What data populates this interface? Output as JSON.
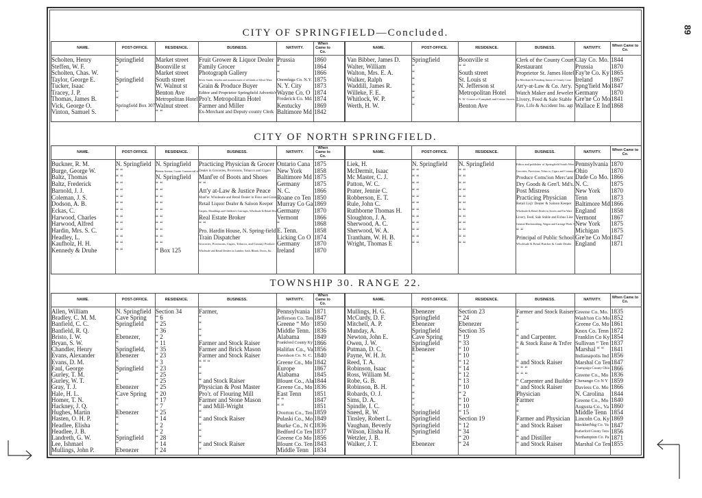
{
  "page_number": "89",
  "columns": [
    "NAME.",
    "POST-OFFICE.",
    "RESIDENCE.",
    "BUSINESS.",
    "NATIVITY.",
    "When Came to Co."
  ],
  "sections": [
    {
      "title": "CITY OF SPRINGFIELD—Concluded.",
      "left_rows": [
        [
          "Scholten, Henry",
          "Springfield",
          "Market street",
          "Fruit Grower & Liquor Dealer",
          "Prussia",
          "1860"
        ],
        [
          "Steffen, W. F.",
          "“",
          "Boonville st",
          "Family Grocer",
          "“",
          "1864"
        ],
        [
          "Scholten, Chas. W.",
          "“",
          "Market street",
          "Photograph Gallery",
          "“",
          "1866"
        ],
        [
          "Taylor, George E.",
          "Springfield",
          "South street",
          "Silver Smith, Jeweler and manufacturer of all kinds of Silver Ware",
          "Onondaga Co. N.Y.",
          "1875"
        ],
        [
          "Tucker, Isaac",
          "“",
          "W. Walnut st",
          "Grain & Produce Buyer",
          "N. Y. City",
          "1873"
        ],
        [
          "Tracey, J. P.",
          "“",
          "Benton Ave",
          "Editor and Proprietor Springfield Advertis'r",
          "Wayne Co. O",
          "1874"
        ],
        [
          "Thomas, James B.",
          "“",
          "Metropolitan Hotel",
          "Pro'r. Metropolitan Hotel",
          "Frederick Co. Md.",
          "1874"
        ],
        [
          "Vick, George O.",
          "Springfield Box 307",
          "Walnut street",
          "Farmer and Miller",
          "Kentucky",
          "1869"
        ],
        [
          "Vinton, Samuel S.",
          "“",
          "“ “",
          "Ex-Merchant and Deputy county Clerk",
          "Baltimore Md",
          "1842"
        ]
      ],
      "right_rows": [
        [
          "Van Bibber, James D.",
          "Springfield",
          "Boonville st",
          "Clerk of the County Court",
          "Clay Co. Mo.",
          "1844"
        ],
        [
          "Walter, William",
          "“",
          "“ “",
          "Restaurant",
          "Prussia",
          "1870"
        ],
        [
          "Walton, Mrs. E. A.",
          "“",
          "South street",
          "Proprietor St. James Hotel",
          "Fay'te Co. Ky",
          "1865"
        ],
        [
          "Walker, Ralph",
          "“",
          "St. Louis st",
          "Ex-Merchant & Presiding Justice of County Court",
          "Ireland",
          "1867"
        ],
        [
          "Waddill, James R.",
          "“",
          "N. Jefferson st",
          "Att'y-at-Law & Co. Att'y.",
          "Spng'field Mo",
          "1847"
        ],
        [
          "Willeke, F. E.",
          "“",
          "Metropolitan Hotel",
          "Watch Maker and Jeweler",
          "Germany",
          "1870"
        ],
        [
          "Whitlock, W. P.",
          "“",
          "N. W. Corner of Campbell and Centre Streets",
          "Livery, Feed & Sale Stable",
          "Gre'ne Co Mo",
          "1841"
        ],
        [
          "Werth, H. W.",
          "“",
          "Benton Ave",
          "Fire, Life & Accident Ins. agt",
          "Wallace E Ind",
          "1868"
        ]
      ]
    },
    {
      "title": "CITY OF NORTH SPRINGFIELD.",
      "left_rows": [
        [
          "Buckner, R. M.",
          "N. Springfield",
          "N. Springfield",
          "Practicing Physician & Grocer",
          "Ontario Cana",
          "1875"
        ],
        [
          "Burge, George W.",
          "“ “",
          "Benton Avenue, Corner Commercial street",
          "Dealer in Groceries, Provisions, Tobacco and Cigars",
          "New York",
          "1858"
        ],
        [
          "Baltz, Thomas",
          "“ “",
          "N. Springfield",
          "Manf'er of Boots and Shoes",
          "Baltimore Md",
          "1875"
        ],
        [
          "Baltz, Frederick",
          "“ “",
          "“ “",
          "“ “",
          "Germany",
          "1875"
        ],
        [
          "Barnold, J. J.",
          "“ “",
          "“ “",
          "Att'y at-Law & Justice Peace",
          "N. C.",
          "1866"
        ],
        [
          "Coleman, J. S.",
          "“ “",
          "“ “",
          "Manf'er. Wholesale and Retail Dealer in Flour and Grain",
          "Roane co Ten",
          "1850"
        ],
        [
          "Dodson, A. B.",
          "“ “",
          "“ “",
          "Retail Liquor Dealer & Saloon Keeper",
          "Murray Co Ga",
          "1869"
        ],
        [
          "Eckas, C.",
          "“ “",
          "“ “",
          "Carpets, Mouldings and Children's Carriages, Wholesale & Retail Dealer in Furniture",
          "Germany",
          "1870"
        ],
        [
          "Harwood, Charles",
          "“ “",
          "“ “",
          "Real Estate Broker",
          "Vermont",
          "1866"
        ],
        [
          "Harwood, Alfred",
          "“ “",
          "“ “",
          "“ “",
          "“",
          "1868"
        ],
        [
          "Hardin, Mrs. S. C.",
          "“ “",
          "“ “",
          "Pro. Hardin House, N. Spring-field",
          "E. Tenn.",
          "1858"
        ],
        [
          "Headley, L.",
          "“ “",
          "“ “",
          "Train Dispatcher",
          "Licking Co O",
          "1874"
        ],
        [
          "Kaufholz, H. H.",
          "“ “",
          "“ “",
          "Groceries, Provisions, Cigars, Tobacco, and Country Produce",
          "Germany",
          "1870"
        ],
        [
          "Kennedy & Druhe",
          "“ “",
          "“ Box 125",
          "Wholesale and Retail Dealers in Lumber, Sash, Blinds, Doors, &c.",
          "Ireland",
          "1870"
        ]
      ],
      "right_rows": [
        [
          "Liek, H.",
          "N. Springfield",
          "N. Springfield",
          "Editor and publisher of Springfield South West",
          "Pennsylvania",
          "1870"
        ],
        [
          "McDermit, Isaac",
          "“ “",
          "“ “",
          "Groceries, Provisions, Tobacco, Cigars and Country Produce",
          "Ohio",
          "1870"
        ],
        [
          "Mc Master, C. J.",
          "“ “",
          "“ “",
          "Produce Coms'ion Merc'ant",
          "Dade Co Mo.",
          "1866"
        ],
        [
          "Patton, W. C.",
          "“ “",
          "“ “",
          "Dry Goods & Gen'l. Md's.",
          "N. C.",
          "1875"
        ],
        [
          "Prater, Jennie C.",
          "“ “",
          "“ “",
          "Post Mistress",
          "New York",
          "1870"
        ],
        [
          "Robberson, E. T.",
          "“ “",
          "“ “",
          "Practicing Physician",
          "Tenn",
          "1873"
        ],
        [
          "Rule, John C.",
          "“ “",
          "“ “",
          "Retail Liq'r Dealer & Saloon Keeper",
          "Baltimore Md",
          "1866"
        ],
        [
          "Ruthborne Thomas H.",
          "“ “",
          "“ “",
          "Wholesale & Retail Dealer in Stoves and Tin Ware",
          "England",
          "1858"
        ],
        [
          "Sloughton, J. A.",
          "“ “",
          "“ “",
          "Livery, Feed, Sale Stable and Exbus Line",
          "Vermont",
          "1867"
        ],
        [
          "Sherwood, A. C.",
          "“ “",
          "“ “",
          "General Blacksmithing, Wagon and Carriage Work. Horse Shoeing a specialty.",
          "New York",
          "1875"
        ],
        [
          "Sherwood, W. A.",
          "“ “",
          "“ “",
          "“ “",
          "Michigan",
          "1875"
        ],
        [
          "Trantham, W. H. B.",
          "“ “",
          "“ “",
          "Principal of Public School",
          "Gre'ne Co Mo",
          "1847"
        ],
        [
          "Wright, Thomas E",
          "“ “",
          "“ “",
          "Wholesale & Retail Butcher & Cattle Dealer",
          "England",
          "1871"
        ]
      ]
    },
    {
      "title": "TOWNSHIP 30. RANGE 22.",
      "left_rows": [
        [
          "Allen, William",
          "N. Springfield",
          "Section 34",
          "Farmer,",
          "Pennsylvania",
          "1871"
        ],
        [
          "Bradley, C. M. M.",
          "Cave Spring",
          "“ 6",
          "“",
          "Jefferson Co. Ten",
          "1847"
        ],
        [
          "Banfield, C. C.",
          "Springfield",
          "“ 25",
          "“",
          "Greene “ Mo",
          "1850"
        ],
        [
          "Banfield, R. Q.",
          "“",
          "“ 36",
          "“",
          "Middle Tenn.",
          "1836"
        ],
        [
          "Bristo, I. W.",
          "Ebenezer,",
          "“ 2",
          "“",
          "Alabama",
          "1849"
        ],
        [
          "Bryan, S. W.",
          "“",
          "“ 11",
          "Farmer and Stock Raiser",
          "Frankford County Ky",
          "1866"
        ],
        [
          "Chandler, Henry",
          "Springfield,",
          "“ 35",
          "Farmer and Brick Mason",
          "Halifax Co., Va",
          "1856"
        ],
        [
          "Evans, Alexander",
          "Ebenezer",
          "“ 23",
          "Farmer and Stock Raiser",
          "Davidson Co. N. C.",
          "1840"
        ],
        [
          "Evans, D. M.",
          "“",
          "“ 3",
          "“ “ “",
          "Greene Co., Mo",
          "1842"
        ],
        [
          "Faul, George",
          "Springfield",
          "“ 23",
          "“",
          "Europe",
          "1867"
        ],
        [
          "Gurley, T. M.",
          "“",
          "“ 25",
          "“",
          "Alabama",
          "1845"
        ],
        [
          "Gurley, W. T.",
          "“",
          "“ 25",
          "“ and Stock Raiser",
          "Blount Co., Ala",
          "1844"
        ],
        [
          "Gray, T. J.",
          "Ebenezer",
          "“ 25",
          "Physician & Post Master",
          "Greene Co., Mo",
          "1836"
        ],
        [
          "Hale, H. L.",
          "Cave Spring",
          "“ 20",
          "Pro'r. of Flouring Mill",
          "East Tenn",
          "1851"
        ],
        [
          "Homer, T. N.",
          "“",
          "“ 17",
          "Farmer and Stone Mason",
          "“ “",
          "1847"
        ],
        [
          "Hackney, J. Q.",
          "“",
          "“ 7",
          "“ and Mill-Wright",
          "“ “",
          "1851"
        ],
        [
          "Hughes, Martin",
          "Ebenezer",
          "“ 25",
          "“",
          "Overton Co., Ten",
          "1859"
        ],
        [
          "Hasten, O. H. P.",
          "“",
          "“ 14",
          "“ and Stock Raiser",
          "Pulaski Co., Mo",
          "1849"
        ],
        [
          "Headlee, Elisha",
          "“",
          "“ 2",
          "“",
          "Burke Co., N C",
          "1836"
        ],
        [
          "Headlee, J. B.",
          "“",
          "“ 2",
          "“",
          "Bedford Co Ten",
          "1837"
        ],
        [
          "Landreth, G. W.",
          "Springfield",
          "“ 28",
          "“",
          "Greene Co Mo",
          "1856"
        ],
        [
          "Lee, Ishmael",
          "“",
          "“ 14",
          "“ and Stock Raiser",
          "Blount Co. Ten",
          "1843"
        ],
        [
          "Mullings, John P.",
          "Ebenezer",
          "“ 24",
          "“",
          "Middle Tenn",
          "1834"
        ]
      ],
      "right_rows": [
        [
          "Mullings, H. G.",
          "Ebenezer",
          "Section 23",
          "Farmer and Stock Raiser",
          "Greene Co. Mo.",
          "1835"
        ],
        [
          "McCurdy, D. F.",
          "Springfield",
          "“ 24",
          "“",
          "Wash'ton Co Mo",
          "1852"
        ],
        [
          "Mitchell, A. P.",
          "Ebenezer",
          "Ebenezer",
          "“",
          "Greene Co. Mo",
          "1861"
        ],
        [
          "Munday, A.",
          "Springfield",
          "Section 35",
          "“",
          "Knox Co. Tenn",
          "1872"
        ],
        [
          "Newton, John E.",
          "Cave Spring",
          "“ 19",
          "“ and Carpenter.",
          "Franklin Co Ky",
          "1854"
        ],
        [
          "Owen, J. W.",
          "Springfield",
          "“ 33",
          "“ & Stock Raise & Trd'er",
          "Sullivan “ Ten",
          "1837"
        ],
        [
          "Putman, D. C.",
          "Ebenezer",
          "“ 10",
          "“",
          "Marshal “ “",
          "1841"
        ],
        [
          "Payne, W. H. Jr.",
          "“",
          "“ 10",
          "“",
          "Indianapolis Ind",
          "1856"
        ],
        [
          "Reed, T. A.",
          "“",
          "“ 12",
          "“ and Stock Raiser",
          "Marshal Co Ten",
          "1847"
        ],
        [
          "Robinson, Isaac",
          "“",
          "“ 14",
          "“ “ “",
          "Champaign County Ohio",
          "1866"
        ],
        [
          "Ross, William M.",
          "“",
          "“ 12",
          "“ “ “",
          "Greene Co., Mo",
          "1836"
        ],
        [
          "Robe, G. B.",
          "“",
          "“ 13",
          "“ Carpenter and Builder",
          "Chenango Co N Y",
          "1859"
        ],
        [
          "Robinson, B. H.",
          "“",
          "“ 10",
          "“ and Stock Raiser",
          "Daviess Co. Mo",
          "1866"
        ],
        [
          "Robards, O. J.",
          "“",
          "“ 2",
          "Physician",
          "N. Carolina",
          "1844"
        ],
        [
          "Sims, D. A.",
          "“",
          "“ 10",
          "Farmer",
          "Greene Co., Mo",
          "1840"
        ],
        [
          "Spindle, I. C.",
          "“",
          "“ 10",
          "“",
          "Augusta Co., Va",
          "1860"
        ],
        [
          "Sneed, R. W.",
          "Springfield",
          "“ 15",
          "“",
          "Middle Tenn",
          "1854"
        ],
        [
          "Tinsley, Robert L.",
          "Springfield",
          "Section 19",
          "Farmer and Physician",
          "Lincoln Co. Ky",
          "1869"
        ],
        [
          "Vaughan, Beverly",
          "Springfield",
          "“ 12",
          "“ and Stock Raiser",
          "Mecklen'bkg Co. Va",
          "1847"
        ],
        [
          "Wilson, Elisha H.",
          "Springfield",
          "“ 34",
          "“",
          "Rutherford County Tenn",
          "1856"
        ],
        [
          "Wetzler, J. B.",
          "“",
          "“ 20",
          "“ and Distiller",
          "Northampton Co. Pa",
          "1871"
        ],
        [
          "Walker, J. T.",
          "Ebenezer",
          "“ 24",
          "“ and Stock Raiser",
          "Marshal Co Ten",
          "1855"
        ]
      ]
    }
  ]
}
